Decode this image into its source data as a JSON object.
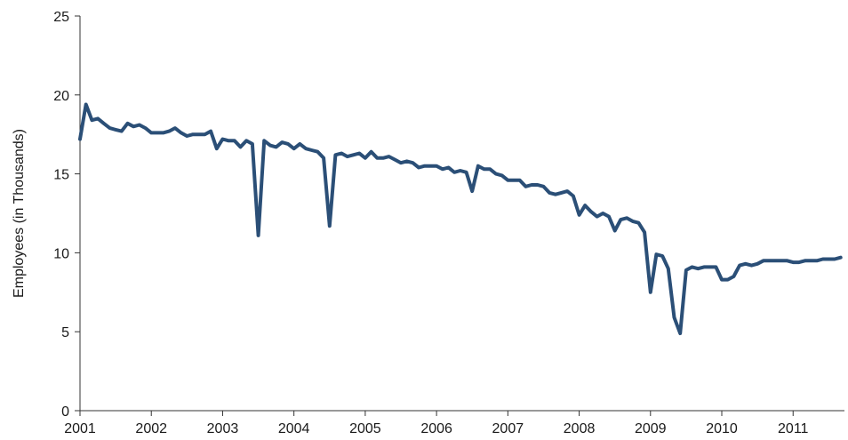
{
  "chart_data": {
    "type": "line",
    "title": "",
    "xlabel": "",
    "ylabel": "Employees (in Thousands)",
    "xlim": [
      2001,
      2011.72
    ],
    "ylim": [
      0,
      25
    ],
    "y_ticks": [
      "0",
      "5",
      "10",
      "15",
      "20",
      "25"
    ],
    "x_ticks": [
      "2001",
      "2002",
      "2003",
      "2004",
      "2005",
      "2006",
      "2007",
      "2008",
      "2009",
      "2010",
      "2011"
    ],
    "grid": false,
    "legend": "none",
    "series": [
      {
        "color": "#2b4f77",
        "x": [
          2001.0,
          2001.083,
          2001.167,
          2001.25,
          2001.333,
          2001.417,
          2001.5,
          2001.583,
          2001.667,
          2001.75,
          2001.833,
          2001.917,
          2002.0,
          2002.083,
          2002.167,
          2002.25,
          2002.333,
          2002.417,
          2002.5,
          2002.583,
          2002.667,
          2002.75,
          2002.833,
          2002.917,
          2003.0,
          2003.083,
          2003.167,
          2003.25,
          2003.333,
          2003.417,
          2003.5,
          2003.583,
          2003.667,
          2003.75,
          2003.833,
          2003.917,
          2004.0,
          2004.083,
          2004.167,
          2004.25,
          2004.333,
          2004.417,
          2004.5,
          2004.583,
          2004.667,
          2004.75,
          2004.833,
          2004.917,
          2005.0,
          2005.083,
          2005.167,
          2005.25,
          2005.333,
          2005.417,
          2005.5,
          2005.583,
          2005.667,
          2005.75,
          2005.833,
          2005.917,
          2006.0,
          2006.083,
          2006.167,
          2006.25,
          2006.333,
          2006.417,
          2006.5,
          2006.583,
          2006.667,
          2006.75,
          2006.833,
          2006.917,
          2007.0,
          2007.083,
          2007.167,
          2007.25,
          2007.333,
          2007.417,
          2007.5,
          2007.583,
          2007.667,
          2007.75,
          2007.833,
          2007.917,
          2008.0,
          2008.083,
          2008.167,
          2008.25,
          2008.333,
          2008.417,
          2008.5,
          2008.583,
          2008.667,
          2008.75,
          2008.833,
          2008.917,
          2009.0,
          2009.083,
          2009.167,
          2009.25,
          2009.333,
          2009.417,
          2009.5,
          2009.583,
          2009.667,
          2009.75,
          2009.833,
          2009.917,
          2010.0,
          2010.083,
          2010.167,
          2010.25,
          2010.333,
          2010.417,
          2010.5,
          2010.583,
          2010.667,
          2010.75,
          2010.833,
          2010.917,
          2011.0,
          2011.083,
          2011.167,
          2011.25,
          2011.333,
          2011.417,
          2011.5,
          2011.583,
          2011.667
        ],
        "values": [
          17.2,
          19.4,
          18.4,
          18.5,
          18.2,
          17.9,
          17.8,
          17.7,
          18.2,
          18.0,
          18.1,
          17.9,
          17.6,
          17.6,
          17.6,
          17.7,
          17.9,
          17.6,
          17.4,
          17.5,
          17.5,
          17.5,
          17.7,
          16.6,
          17.2,
          17.1,
          17.1,
          16.7,
          17.1,
          16.9,
          11.1,
          17.1,
          16.8,
          16.7,
          17.0,
          16.9,
          16.6,
          16.9,
          16.6,
          16.5,
          16.4,
          16.0,
          11.7,
          16.2,
          16.3,
          16.1,
          16.2,
          16.3,
          16.0,
          16.4,
          16.0,
          16.0,
          16.1,
          15.9,
          15.7,
          15.8,
          15.7,
          15.4,
          15.5,
          15.5,
          15.5,
          15.3,
          15.4,
          15.1,
          15.2,
          15.1,
          13.9,
          15.5,
          15.3,
          15.3,
          15.0,
          14.9,
          14.6,
          14.6,
          14.6,
          14.2,
          14.3,
          14.3,
          14.2,
          13.8,
          13.7,
          13.8,
          13.9,
          13.6,
          12.4,
          13.0,
          12.6,
          12.3,
          12.5,
          12.3,
          11.4,
          12.1,
          12.2,
          12.0,
          11.9,
          11.3,
          7.5,
          9.9,
          9.8,
          9.0,
          5.9,
          4.9,
          8.9,
          9.1,
          9.0,
          9.1,
          9.1,
          9.1,
          8.3,
          8.3,
          8.5,
          9.2,
          9.3,
          9.2,
          9.3,
          9.5,
          9.5,
          9.5,
          9.5,
          9.5,
          9.4,
          9.4,
          9.5,
          9.5,
          9.5,
          9.6,
          9.6,
          9.6,
          9.7
        ]
      }
    ]
  }
}
